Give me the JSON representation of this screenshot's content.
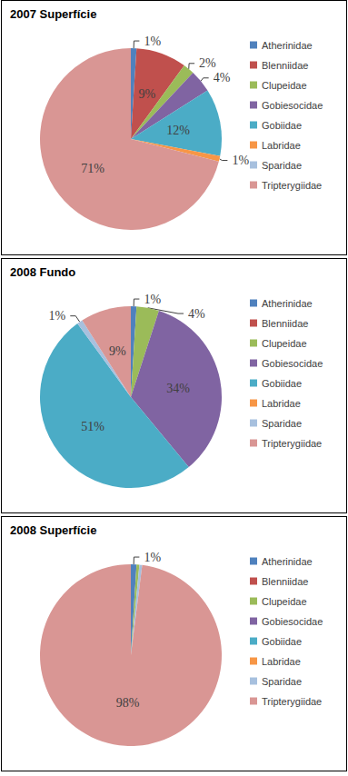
{
  "chart_data": [
    {
      "type": "pie",
      "title": "2007 Superfície",
      "categories": [
        "Atherinidae",
        "Blenniidae",
        "Clupeidae",
        "Gobiesocidae",
        "Gobiidae",
        "Labridae",
        "Sparidae",
        "Tripterygiidae"
      ],
      "values": [
        1,
        9,
        2,
        4,
        12,
        1,
        0,
        71
      ],
      "value_labels": [
        "1%",
        "9%",
        "2%",
        "4%",
        "12%",
        "1%",
        null,
        "71%"
      ],
      "colors": [
        "#4f81bd",
        "#c0504d",
        "#9bbb59",
        "#8064a2",
        "#4bacc6",
        "#f79646",
        "#a7c0de",
        "#d99694"
      ],
      "legend": "right",
      "data_labels": true
    },
    {
      "type": "pie",
      "title": "2008 Fundo",
      "categories": [
        "Atherinidae",
        "Blenniidae",
        "Clupeidae",
        "Gobiesocidae",
        "Gobiidae",
        "Labridae",
        "Sparidae",
        "Tripterygiidae"
      ],
      "values": [
        1,
        0,
        4,
        34,
        51,
        0,
        1,
        9
      ],
      "value_labels": [
        "1%",
        null,
        "4%",
        "34%",
        "51%",
        null,
        "1%",
        "9%"
      ],
      "colors": [
        "#4f81bd",
        "#c0504d",
        "#9bbb59",
        "#8064a2",
        "#4bacc6",
        "#f79646",
        "#a7c0de",
        "#d99694"
      ],
      "legend": "right",
      "data_labels": true
    },
    {
      "type": "pie",
      "title": "2008 Superfície",
      "categories": [
        "Atherinidae",
        "Blenniidae",
        "Clupeidae",
        "Gobiesocidae",
        "Gobiidae",
        "Labridae",
        "Sparidae",
        "Tripterygiidae"
      ],
      "values": [
        1,
        0,
        0.5,
        0,
        0,
        0,
        0.5,
        98
      ],
      "value_labels": [
        "1%",
        null,
        null,
        null,
        null,
        null,
        null,
        "98%"
      ],
      "colors": [
        "#4f81bd",
        "#c0504d",
        "#9bbb59",
        "#8064a2",
        "#4bacc6",
        "#f79646",
        "#a7c0de",
        "#d99694"
      ],
      "legend": "right",
      "data_labels": true
    }
  ]
}
